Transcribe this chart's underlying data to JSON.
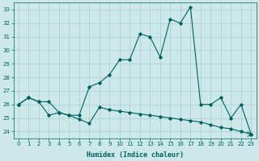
{
  "xlabel": "Humidex (Indice chaleur)",
  "bg_color": "#cce8e8",
  "grid_color": "#aacece",
  "line_color": "#006060",
  "xlim": [
    -0.5,
    23.5
  ],
  "ylim": [
    23.5,
    33.5
  ],
  "yticks": [
    24,
    25,
    26,
    27,
    28,
    29,
    30,
    31,
    32,
    33
  ],
  "xticks": [
    0,
    1,
    2,
    3,
    4,
    5,
    6,
    7,
    8,
    9,
    10,
    11,
    12,
    13,
    14,
    15,
    16,
    17,
    18,
    19,
    20,
    21,
    22,
    23
  ],
  "upper_x": [
    0,
    1,
    2,
    3,
    4,
    5,
    6,
    7,
    8,
    9,
    10,
    11,
    12,
    13,
    14,
    15,
    16,
    17,
    18,
    19,
    20,
    21,
    22,
    23
  ],
  "upper_y": [
    26.0,
    26.5,
    26.2,
    26.2,
    25.4,
    25.2,
    25.2,
    27.3,
    27.6,
    28.2,
    29.3,
    29.3,
    31.2,
    31.0,
    29.5,
    32.3,
    32.0,
    33.2,
    26.0,
    26.0,
    26.5,
    25.0,
    26.0,
    23.8
  ],
  "lower_x": [
    0,
    1,
    2,
    3,
    4,
    5,
    6,
    7,
    8,
    9,
    10,
    11,
    12,
    13,
    14,
    15,
    16,
    17,
    18,
    19,
    20,
    21,
    22,
    23
  ],
  "lower_y": [
    26.0,
    26.5,
    26.2,
    25.2,
    25.4,
    25.2,
    24.9,
    24.6,
    25.8,
    25.6,
    25.5,
    25.4,
    25.3,
    25.2,
    25.1,
    25.0,
    24.9,
    24.8,
    24.7,
    24.5,
    24.3,
    24.2,
    24.0,
    23.8
  ]
}
